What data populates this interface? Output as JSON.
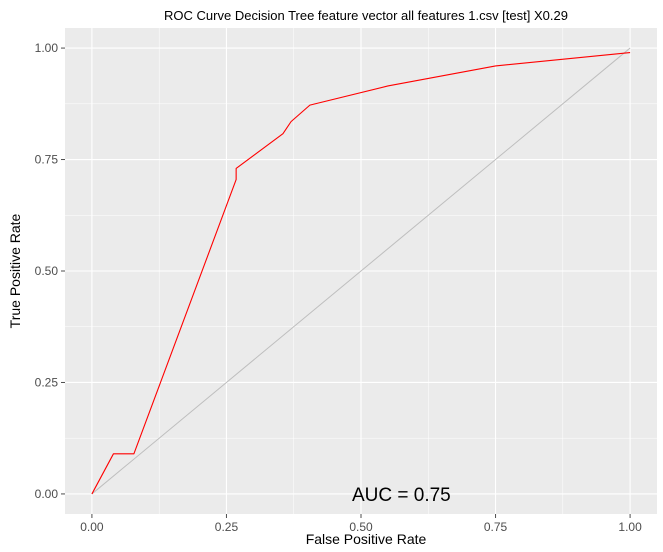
{
  "chart_data": {
    "type": "line",
    "title": "ROC Curve Decision Tree feature vector all features 1.csv [test] X0.29",
    "xlabel": "False Positive Rate",
    "ylabel": "True Positive Rate",
    "xlim": [
      -0.05,
      1.05
    ],
    "ylim": [
      -0.045,
      1.045
    ],
    "x_ticks": [
      0.0,
      0.25,
      0.5,
      0.75,
      1.0
    ],
    "x_tick_labels": [
      "0.00",
      "0.25",
      "0.50",
      "0.75",
      "1.00"
    ],
    "y_ticks": [
      0.0,
      0.25,
      0.5,
      0.75,
      1.0
    ],
    "y_tick_labels": [
      "0.00",
      "0.25",
      "0.50",
      "0.75",
      "1.00"
    ],
    "grid": true,
    "panel_color": "#ebebeb",
    "series": [
      {
        "color": "#ff0000",
        "x": [
          0.0,
          0.04,
          0.078,
          0.268,
          0.268,
          0.355,
          0.37,
          0.405,
          0.55,
          0.75,
          1.0
        ],
        "y": [
          0.0,
          0.09,
          0.09,
          0.705,
          0.73,
          0.808,
          0.835,
          0.872,
          0.915,
          0.96,
          0.99
        ]
      }
    ],
    "reference_line": {
      "color": "#bebebe",
      "x": [
        0.0,
        1.0
      ],
      "y": [
        0.0,
        1.0
      ]
    },
    "annotations": [
      {
        "text": "AUC = 0.75",
        "x": 0.575,
        "y": 0.0
      }
    ]
  }
}
